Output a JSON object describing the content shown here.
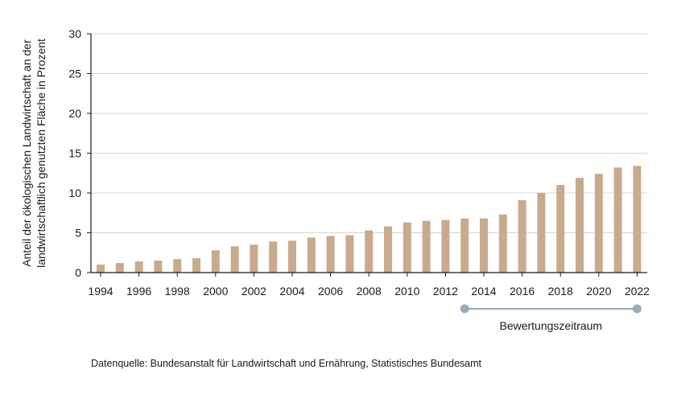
{
  "chart_data": {
    "type": "bar",
    "title": "",
    "xlabel": "",
    "ylabel": "Anteil der ökologischen Landwirtschaft an der landwirtschaftlich genutzten Fläche in Prozent",
    "ylabel_lines": [
      "Anteil der ökologischen Landwirtschaft an der",
      "landwirtschaftlich genutzten Fläche in Prozent"
    ],
    "ylim": [
      0,
      30
    ],
    "yticks": [
      "0",
      "5",
      "10",
      "15",
      "20",
      "25",
      "30"
    ],
    "xtick_labels": [
      "1994",
      "1996",
      "1998",
      "2000",
      "2002",
      "2004",
      "2006",
      "2008",
      "2010",
      "2012",
      "2014",
      "2016",
      "2018",
      "2020",
      "2022"
    ],
    "categories": [
      "1994",
      "1995",
      "1996",
      "1997",
      "1998",
      "1999",
      "2000",
      "2001",
      "2002",
      "2003",
      "2004",
      "2005",
      "2006",
      "2007",
      "2008",
      "2009",
      "2010",
      "2011",
      "2012",
      "2013",
      "2014",
      "2015",
      "2016",
      "2017",
      "2018",
      "2019",
      "2020",
      "2021",
      "2022"
    ],
    "values": [
      1.0,
      1.2,
      1.4,
      1.5,
      1.7,
      1.8,
      2.8,
      3.3,
      3.5,
      3.9,
      4.0,
      4.4,
      4.6,
      4.7,
      5.3,
      5.8,
      6.3,
      6.5,
      6.6,
      6.8,
      6.8,
      7.3,
      9.1,
      10.0,
      11.0,
      11.9,
      12.4,
      13.2,
      13.4
    ],
    "grid": true,
    "bar_color": "#c8ab8c",
    "annotation": {
      "label": "Bewertungszeitraum",
      "start": "2013",
      "end": "2022",
      "color": "#9aabbc"
    }
  },
  "source_text": "Datenquelle: Bundesanstalt für Landwirtschaft und Ernährung, Statistisches Bundesamt"
}
